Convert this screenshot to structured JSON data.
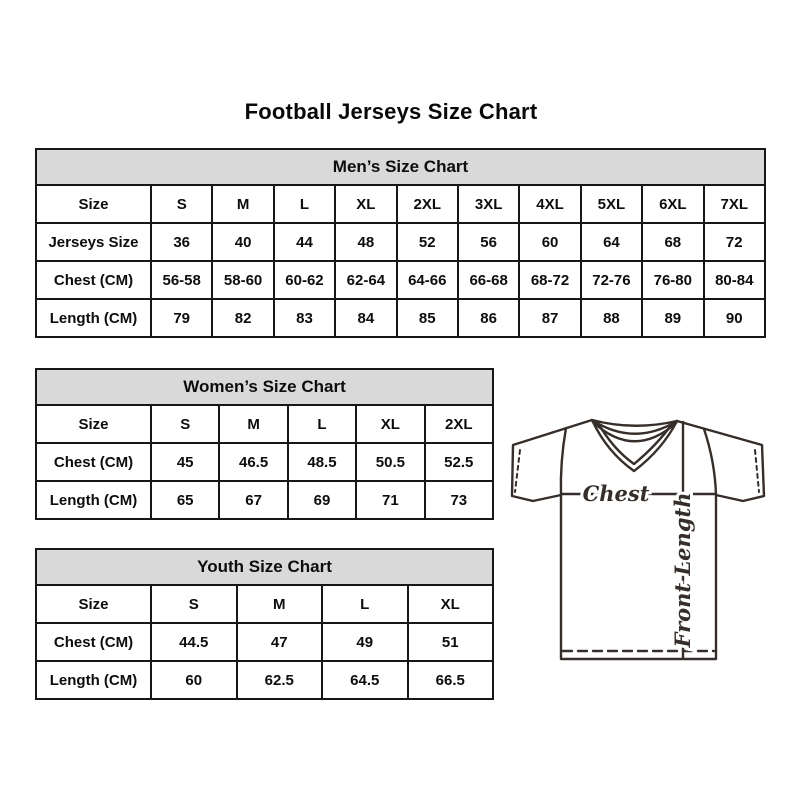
{
  "page": {
    "title": "Football Jerseys Size Chart"
  },
  "chart_data": [
    {
      "type": "table",
      "title": "Men’s Size Chart",
      "columns": [
        "Size",
        "S",
        "M",
        "L",
        "XL",
        "2XL",
        "3XL",
        "4XL",
        "5XL",
        "6XL",
        "7XL"
      ],
      "rows": [
        [
          "Jerseys Size",
          "36",
          "40",
          "44",
          "48",
          "52",
          "56",
          "60",
          "64",
          "68",
          "72"
        ],
        [
          "Chest (CM)",
          "56-58",
          "58-60",
          "60-62",
          "62-64",
          "64-66",
          "66-68",
          "68-72",
          "72-76",
          "76-80",
          "80-84"
        ],
        [
          "Length (CM)",
          "79",
          "82",
          "83",
          "84",
          "85",
          "86",
          "87",
          "88",
          "89",
          "90"
        ]
      ]
    },
    {
      "type": "table",
      "title": "Women’s Size Chart",
      "columns": [
        "Size",
        "S",
        "M",
        "L",
        "XL",
        "2XL"
      ],
      "rows": [
        [
          "Chest (CM)",
          "45",
          "46.5",
          "48.5",
          "50.5",
          "52.5"
        ],
        [
          "Length (CM)",
          "65",
          "67",
          "69",
          "71",
          "73"
        ]
      ]
    },
    {
      "type": "table",
      "title": "Youth Size Chart",
      "columns": [
        "Size",
        "S",
        "M",
        "L",
        "XL"
      ],
      "rows": [
        [
          "Chest (CM)",
          "44.5",
          "47",
          "49",
          "51"
        ],
        [
          "Length (CM)",
          "60",
          "62.5",
          "64.5",
          "66.5"
        ]
      ]
    }
  ],
  "diagram": {
    "chest_label": "Chest",
    "front_length_label": "Front Length"
  },
  "colors": {
    "table_header_bg": "#d9d9d9",
    "table_border": "#171717",
    "text": "#0d0d0d",
    "diagram_stroke": "#352e2a"
  }
}
